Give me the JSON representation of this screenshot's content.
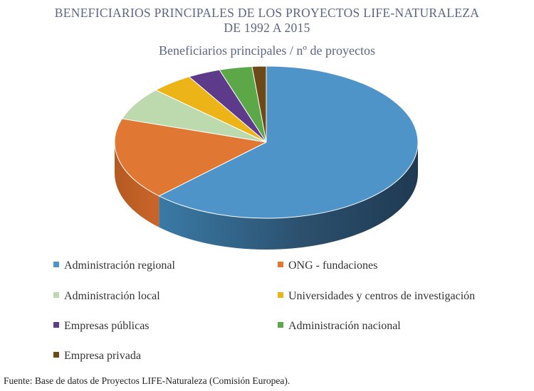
{
  "chart_data": {
    "type": "pie",
    "title": "BENEFICIARIOS PRINCIPALES DE LOS PROYECTOS LIFE-NATURALEZA DE 1992 A 2015",
    "subtitle": "Beneficiarios principales / nº de proyectos",
    "categories": [
      "Administración regional",
      "ONG - fundaciones",
      "Administración local",
      "Universidades y centros de investigación",
      "Empresas públicas",
      "Administración nacional",
      "Empresa privada"
    ],
    "values": [
      62.5,
      17.5,
      7.0,
      4.5,
      3.5,
      3.5,
      1.5
    ],
    "colors": [
      "#4f94c9",
      "#e07733",
      "#bddaae",
      "#edb418",
      "#5e3a8b",
      "#5ca748",
      "#6b4a18"
    ],
    "legend": "bottom",
    "source": "Fuente: Base de datos de Proyectos LIFE-Naturaleza (Comisión Europea)."
  }
}
